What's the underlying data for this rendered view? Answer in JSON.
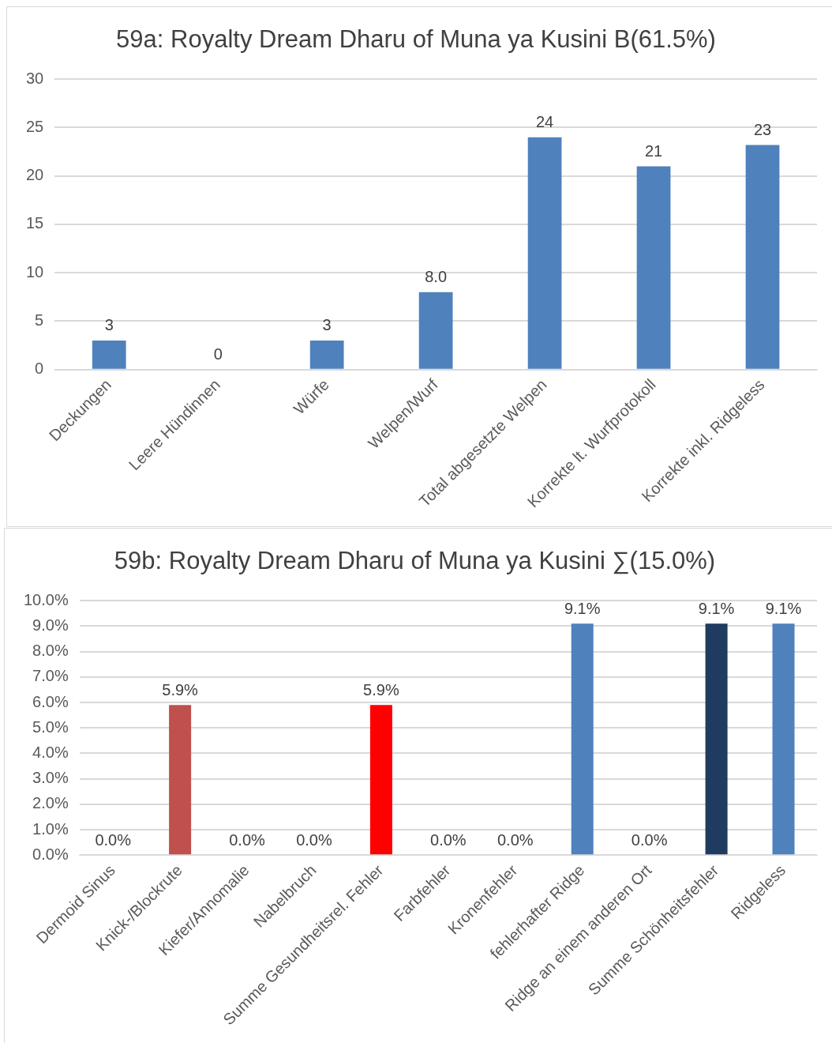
{
  "chart_data": [
    {
      "type": "bar",
      "title": "59a: Royalty Dream Dharu of Muna ya Kusini B(61.5%)",
      "categories": [
        "Deckungen",
        "Leere Hündinnen",
        "Würfe",
        "Welpen/Wurf",
        "Total abgesetzte Welpen",
        "Korrekte lt. Wurfprotokoll",
        "Korrekte inkl. Ridgeless"
      ],
      "values": [
        3,
        0,
        3,
        8.0,
        24,
        21,
        23.2
      ],
      "value_labels": [
        "3",
        "0",
        "3",
        "8.0",
        "24",
        "21",
        "23"
      ],
      "color": "#4f81bd",
      "ylim": [
        0,
        30
      ],
      "yticks": [
        0,
        5,
        10,
        15,
        20,
        25,
        30
      ],
      "grid": "y",
      "legend": false
    },
    {
      "type": "bar",
      "title": "59b: Royalty Dream Dharu of Muna ya Kusini ∑(15.0%)",
      "categories": [
        "Dermoid Sinus",
        "Knick-/Blockrute",
        "Kiefer/Annomalie",
        "Nabelbruch",
        "Summe Gesundheitsrel. Fehler",
        "Farbfehler",
        "Kronenfehler",
        "fehlerhafter Ridge",
        "Ridge an einem anderen Ort",
        "Summe Schönheitsfehler",
        "Ridgeless"
      ],
      "values": [
        0,
        5.9,
        0,
        0,
        5.9,
        0,
        0,
        9.1,
        0,
        9.1,
        9.1
      ],
      "value_labels": [
        "0.0%",
        "5.9%",
        "0.0%",
        "0.0%",
        "5.9%",
        "0.0%",
        "0.0%",
        "9.1%",
        "0.0%",
        "9.1%",
        "9.1%"
      ],
      "colors": [
        "#4f81bd",
        "#c0504d",
        "#4f81bd",
        "#4f81bd",
        "#ff0000",
        "#4f81bd",
        "#4f81bd",
        "#4f81bd",
        "#4f81bd",
        "#1f3b5f",
        "#4f81bd"
      ],
      "ylim": [
        0,
        10
      ],
      "yticks": [
        {
          "value": 0,
          "label": "0.0%"
        },
        {
          "value": 1,
          "label": "1.0%"
        },
        {
          "value": 2,
          "label": "2.0%"
        },
        {
          "value": 3,
          "label": "3.0%"
        },
        {
          "value": 4,
          "label": "4.0%"
        },
        {
          "value": 5,
          "label": "5.0%"
        },
        {
          "value": 6,
          "label": "6.0%"
        },
        {
          "value": 7,
          "label": "7.0%"
        },
        {
          "value": 8,
          "label": "8.0%"
        },
        {
          "value": 9,
          "label": "9.0%"
        },
        {
          "value": 10,
          "label": "10.0%"
        }
      ],
      "grid": "y",
      "legend": false
    }
  ]
}
